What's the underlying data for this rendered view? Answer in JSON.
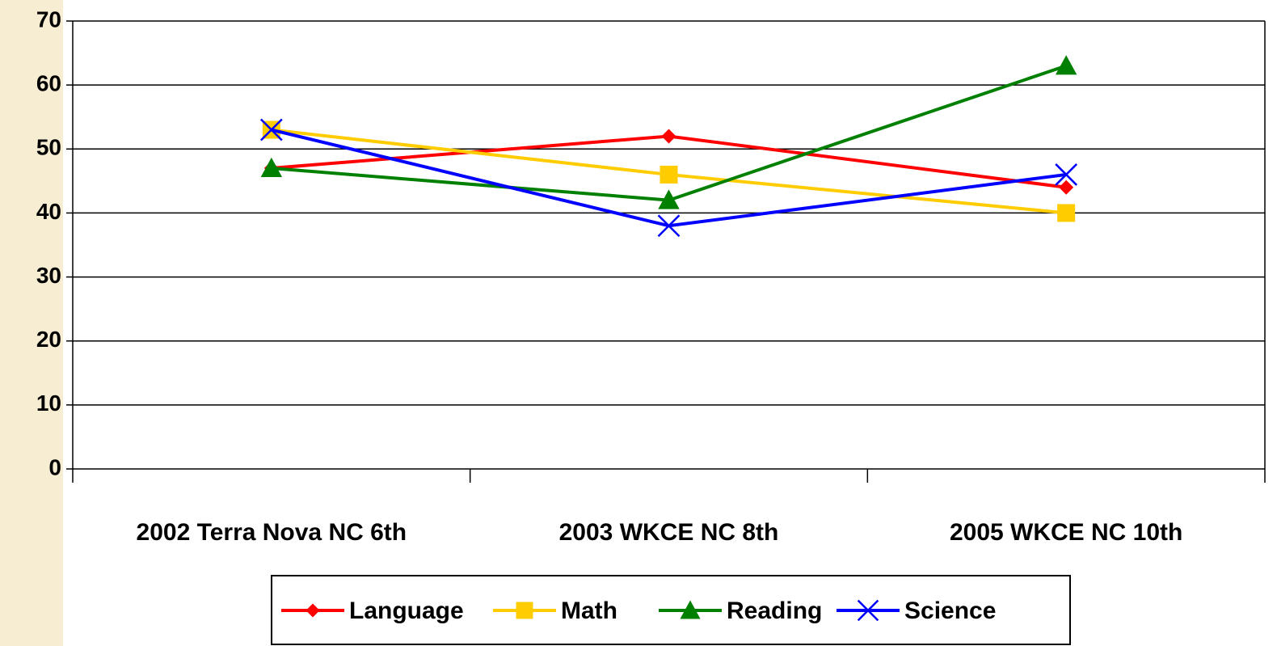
{
  "chart_data": {
    "type": "line",
    "categories": [
      "2002 Terra Nova NC 6th",
      "2003 WKCE NC 8th",
      "2005 WKCE NC 10th"
    ],
    "series": [
      {
        "name": "Language",
        "color": "#ff0000",
        "marker": "diamond",
        "values": [
          47,
          52,
          44
        ]
      },
      {
        "name": "Math",
        "color": "#ffcc00",
        "marker": "square",
        "values": [
          53,
          46,
          40
        ]
      },
      {
        "name": "Reading",
        "color": "#008000",
        "marker": "triangle",
        "values": [
          47,
          42,
          63
        ]
      },
      {
        "name": "Science",
        "color": "#0000ff",
        "marker": "x",
        "values": [
          53,
          38,
          46
        ]
      }
    ],
    "ylim": [
      0,
      70
    ],
    "yticks": [
      0,
      10,
      20,
      30,
      40,
      50,
      60,
      70
    ],
    "grid": true,
    "legend": "bottom"
  }
}
